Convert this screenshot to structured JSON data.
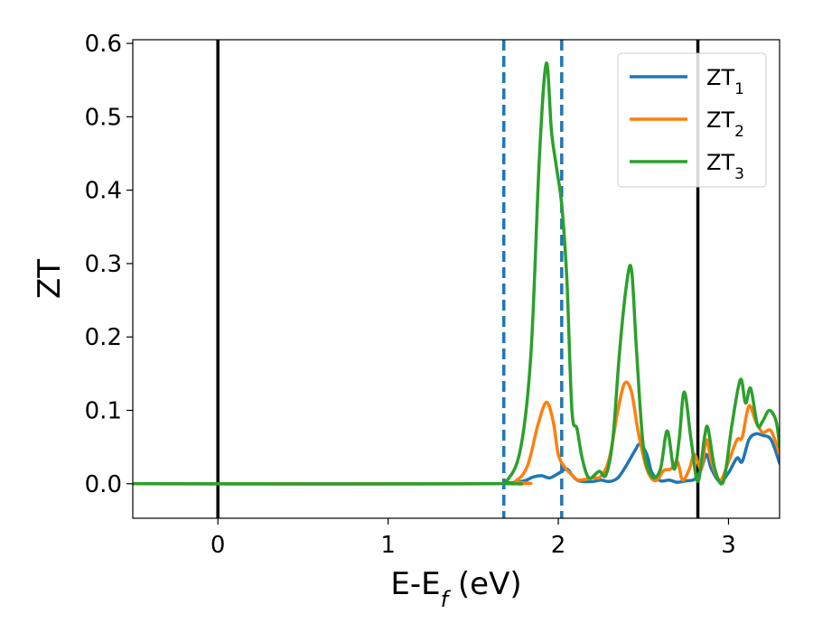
{
  "chart_data": {
    "type": "line",
    "title": "",
    "xlabel": "E-E",
    "xlabel_subscript": "f",
    "xlabel_suffix": " (eV)",
    "ylabel": "ZT",
    "xlim": [
      -0.5,
      3.3
    ],
    "ylim": [
      -0.047,
      0.605
    ],
    "xticks": [
      0,
      1,
      2,
      3
    ],
    "xtick_labels": [
      "0",
      "1",
      "2",
      "3"
    ],
    "yticks": [
      0.0,
      0.1,
      0.2,
      0.3,
      0.4,
      0.5,
      0.6
    ],
    "ytick_labels": [
      "0.0",
      "0.1",
      "0.2",
      "0.3",
      "0.4",
      "0.5",
      "0.6"
    ],
    "grid": false,
    "legend": "top-right",
    "vertical_lines": [
      {
        "x": 0.0,
        "style": "solid",
        "color": "#000000"
      },
      {
        "x": 2.82,
        "style": "solid",
        "color": "#000000"
      },
      {
        "x": 1.68,
        "style": "dashed",
        "color": "#1f77b4"
      },
      {
        "x": 2.02,
        "style": "dashed",
        "color": "#1f77b4"
      }
    ],
    "series": [
      {
        "name": "ZT",
        "name_subscript": "1",
        "color": "#1f77b4",
        "points": [
          [
            -0.5,
            0
          ],
          [
            1.6,
            0
          ],
          [
            1.7,
            0.001
          ],
          [
            1.8,
            0.004
          ],
          [
            1.85,
            0.009
          ],
          [
            1.9,
            0.011
          ],
          [
            1.95,
            0.008
          ],
          [
            2.0,
            0.014
          ],
          [
            2.05,
            0.02
          ],
          [
            2.08,
            0.012
          ],
          [
            2.12,
            0.004
          ],
          [
            2.2,
            0.003
          ],
          [
            2.25,
            0.005
          ],
          [
            2.3,
            0.003
          ],
          [
            2.35,
            0.008
          ],
          [
            2.4,
            0.025
          ],
          [
            2.45,
            0.045
          ],
          [
            2.48,
            0.054
          ],
          [
            2.52,
            0.04
          ],
          [
            2.55,
            0.015
          ],
          [
            2.6,
            0.004
          ],
          [
            2.65,
            0.005
          ],
          [
            2.7,
            0.002
          ],
          [
            2.75,
            0.004
          ],
          [
            2.8,
            0.006
          ],
          [
            2.84,
            0.02
          ],
          [
            2.87,
            0.04
          ],
          [
            2.9,
            0.02
          ],
          [
            2.95,
            0.003
          ],
          [
            3.0,
            0.015
          ],
          [
            3.05,
            0.035
          ],
          [
            3.08,
            0.03
          ],
          [
            3.12,
            0.06
          ],
          [
            3.16,
            0.068
          ],
          [
            3.2,
            0.066
          ],
          [
            3.25,
            0.06
          ],
          [
            3.3,
            0.028
          ]
        ]
      },
      {
        "name": "ZT",
        "name_subscript": "2",
        "color": "#ff7f0e",
        "points": [
          [
            -0.5,
            0
          ],
          [
            1.65,
            0
          ],
          [
            1.75,
            0.004
          ],
          [
            1.82,
            0.025
          ],
          [
            1.88,
            0.08
          ],
          [
            1.93,
            0.111
          ],
          [
            1.97,
            0.085
          ],
          [
            2.0,
            0.04
          ],
          [
            2.04,
            0.022
          ],
          [
            2.08,
            0.012
          ],
          [
            2.12,
            0.005
          ],
          [
            2.2,
            0.008
          ],
          [
            2.25,
            0.01
          ],
          [
            2.3,
            0.035
          ],
          [
            2.35,
            0.1
          ],
          [
            2.39,
            0.137
          ],
          [
            2.43,
            0.125
          ],
          [
            2.47,
            0.07
          ],
          [
            2.52,
            0.02
          ],
          [
            2.57,
            0.004
          ],
          [
            2.62,
            0.018
          ],
          [
            2.66,
            0.02
          ],
          [
            2.7,
            0.03
          ],
          [
            2.73,
            0.005
          ],
          [
            2.77,
            0.02
          ],
          [
            2.8,
            0.04
          ],
          [
            2.84,
            0.02
          ],
          [
            2.87,
            0.06
          ],
          [
            2.9,
            0.03
          ],
          [
            2.95,
            0.005
          ],
          [
            3.0,
            0.03
          ],
          [
            3.05,
            0.06
          ],
          [
            3.08,
            0.063
          ],
          [
            3.12,
            0.106
          ],
          [
            3.16,
            0.085
          ],
          [
            3.2,
            0.07
          ],
          [
            3.25,
            0.072
          ],
          [
            3.3,
            0.04
          ]
        ]
      },
      {
        "name": "ZT",
        "name_subscript": "3",
        "color": "#2ca02c",
        "points": [
          [
            -0.5,
            0
          ],
          [
            1.6,
            0
          ],
          [
            1.7,
            0.005
          ],
          [
            1.78,
            0.05
          ],
          [
            1.84,
            0.18
          ],
          [
            1.89,
            0.45
          ],
          [
            1.93,
            0.573
          ],
          [
            1.96,
            0.48
          ],
          [
            1.99,
            0.43
          ],
          [
            2.02,
            0.38
          ],
          [
            2.05,
            0.28
          ],
          [
            2.08,
            0.1
          ],
          [
            2.11,
            0.075
          ],
          [
            2.14,
            0.035
          ],
          [
            2.18,
            0.008
          ],
          [
            2.24,
            0.017
          ],
          [
            2.28,
            0.012
          ],
          [
            2.32,
            0.06
          ],
          [
            2.36,
            0.18
          ],
          [
            2.4,
            0.27
          ],
          [
            2.43,
            0.292
          ],
          [
            2.46,
            0.18
          ],
          [
            2.5,
            0.05
          ],
          [
            2.55,
            0.01
          ],
          [
            2.6,
            0.02
          ],
          [
            2.64,
            0.072
          ],
          [
            2.68,
            0.02
          ],
          [
            2.71,
            0.06
          ],
          [
            2.74,
            0.125
          ],
          [
            2.78,
            0.06
          ],
          [
            2.82,
            0.003
          ],
          [
            2.86,
            0.065
          ],
          [
            2.88,
            0.075
          ],
          [
            2.92,
            0.02
          ],
          [
            2.97,
            0.003
          ],
          [
            3.02,
            0.08
          ],
          [
            3.07,
            0.142
          ],
          [
            3.1,
            0.11
          ],
          [
            3.13,
            0.13
          ],
          [
            3.17,
            0.08
          ],
          [
            3.2,
            0.085
          ],
          [
            3.24,
            0.1
          ],
          [
            3.28,
            0.085
          ],
          [
            3.3,
            0.05
          ]
        ]
      }
    ]
  }
}
